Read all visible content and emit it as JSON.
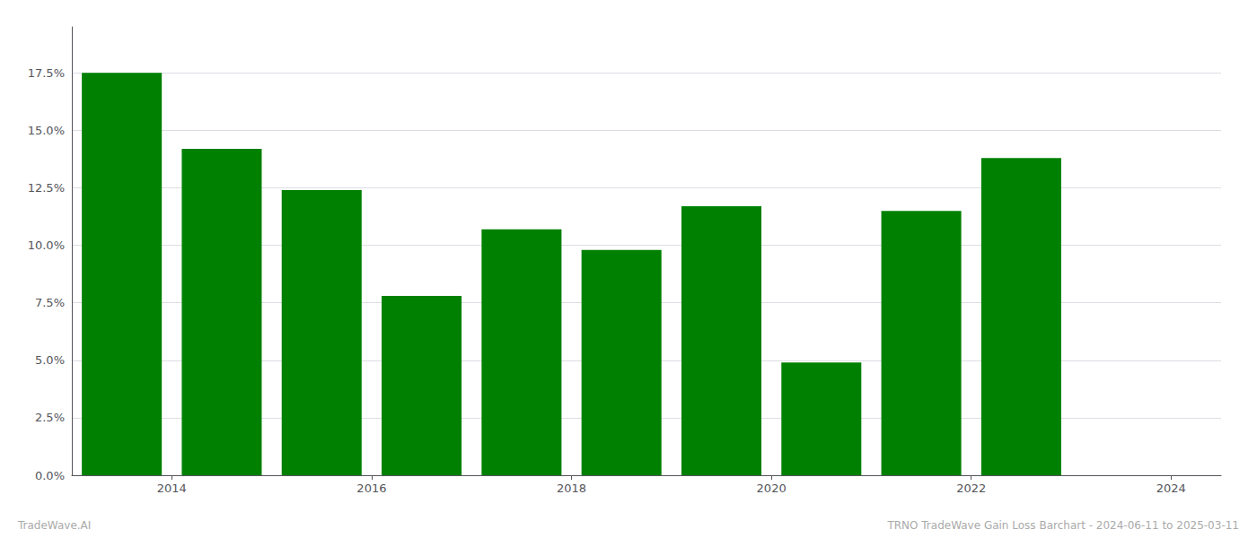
{
  "chart_data": {
    "type": "bar",
    "x": [
      2014,
      2015,
      2016,
      2017,
      2018,
      2019,
      2020,
      2021,
      2022,
      2023
    ],
    "values": [
      0.175,
      0.142,
      0.124,
      0.078,
      0.107,
      0.098,
      0.117,
      0.049,
      0.115,
      0.138
    ],
    "color": "#008000",
    "xlim": [
      2013.5,
      2025.0
    ],
    "xticks": [
      {
        "value": 2014.5,
        "label": "2014"
      },
      {
        "value": 2016.5,
        "label": "2016"
      },
      {
        "value": 2018.5,
        "label": "2018"
      },
      {
        "value": 2020.5,
        "label": "2020"
      },
      {
        "value": 2022.5,
        "label": "2022"
      },
      {
        "value": 2024.5,
        "label": "2024"
      }
    ],
    "ylim": [
      0,
      0.195
    ],
    "yticks": [
      {
        "value": 0.0,
        "label": "0.0%"
      },
      {
        "value": 0.025,
        "label": "2.5%"
      },
      {
        "value": 0.05,
        "label": "5.0%"
      },
      {
        "value": 0.075,
        "label": "7.5%"
      },
      {
        "value": 0.1,
        "label": "10.0%"
      },
      {
        "value": 0.125,
        "label": "12.5%"
      },
      {
        "value": 0.15,
        "label": "15.0%"
      },
      {
        "value": 0.175,
        "label": "17.5%"
      }
    ],
    "grid": true,
    "annotations": [
      "TradeWave.AI",
      "TRNO TradeWave Gain Loss Barchart - 2024-06-11 to 2025-03-11"
    ]
  }
}
